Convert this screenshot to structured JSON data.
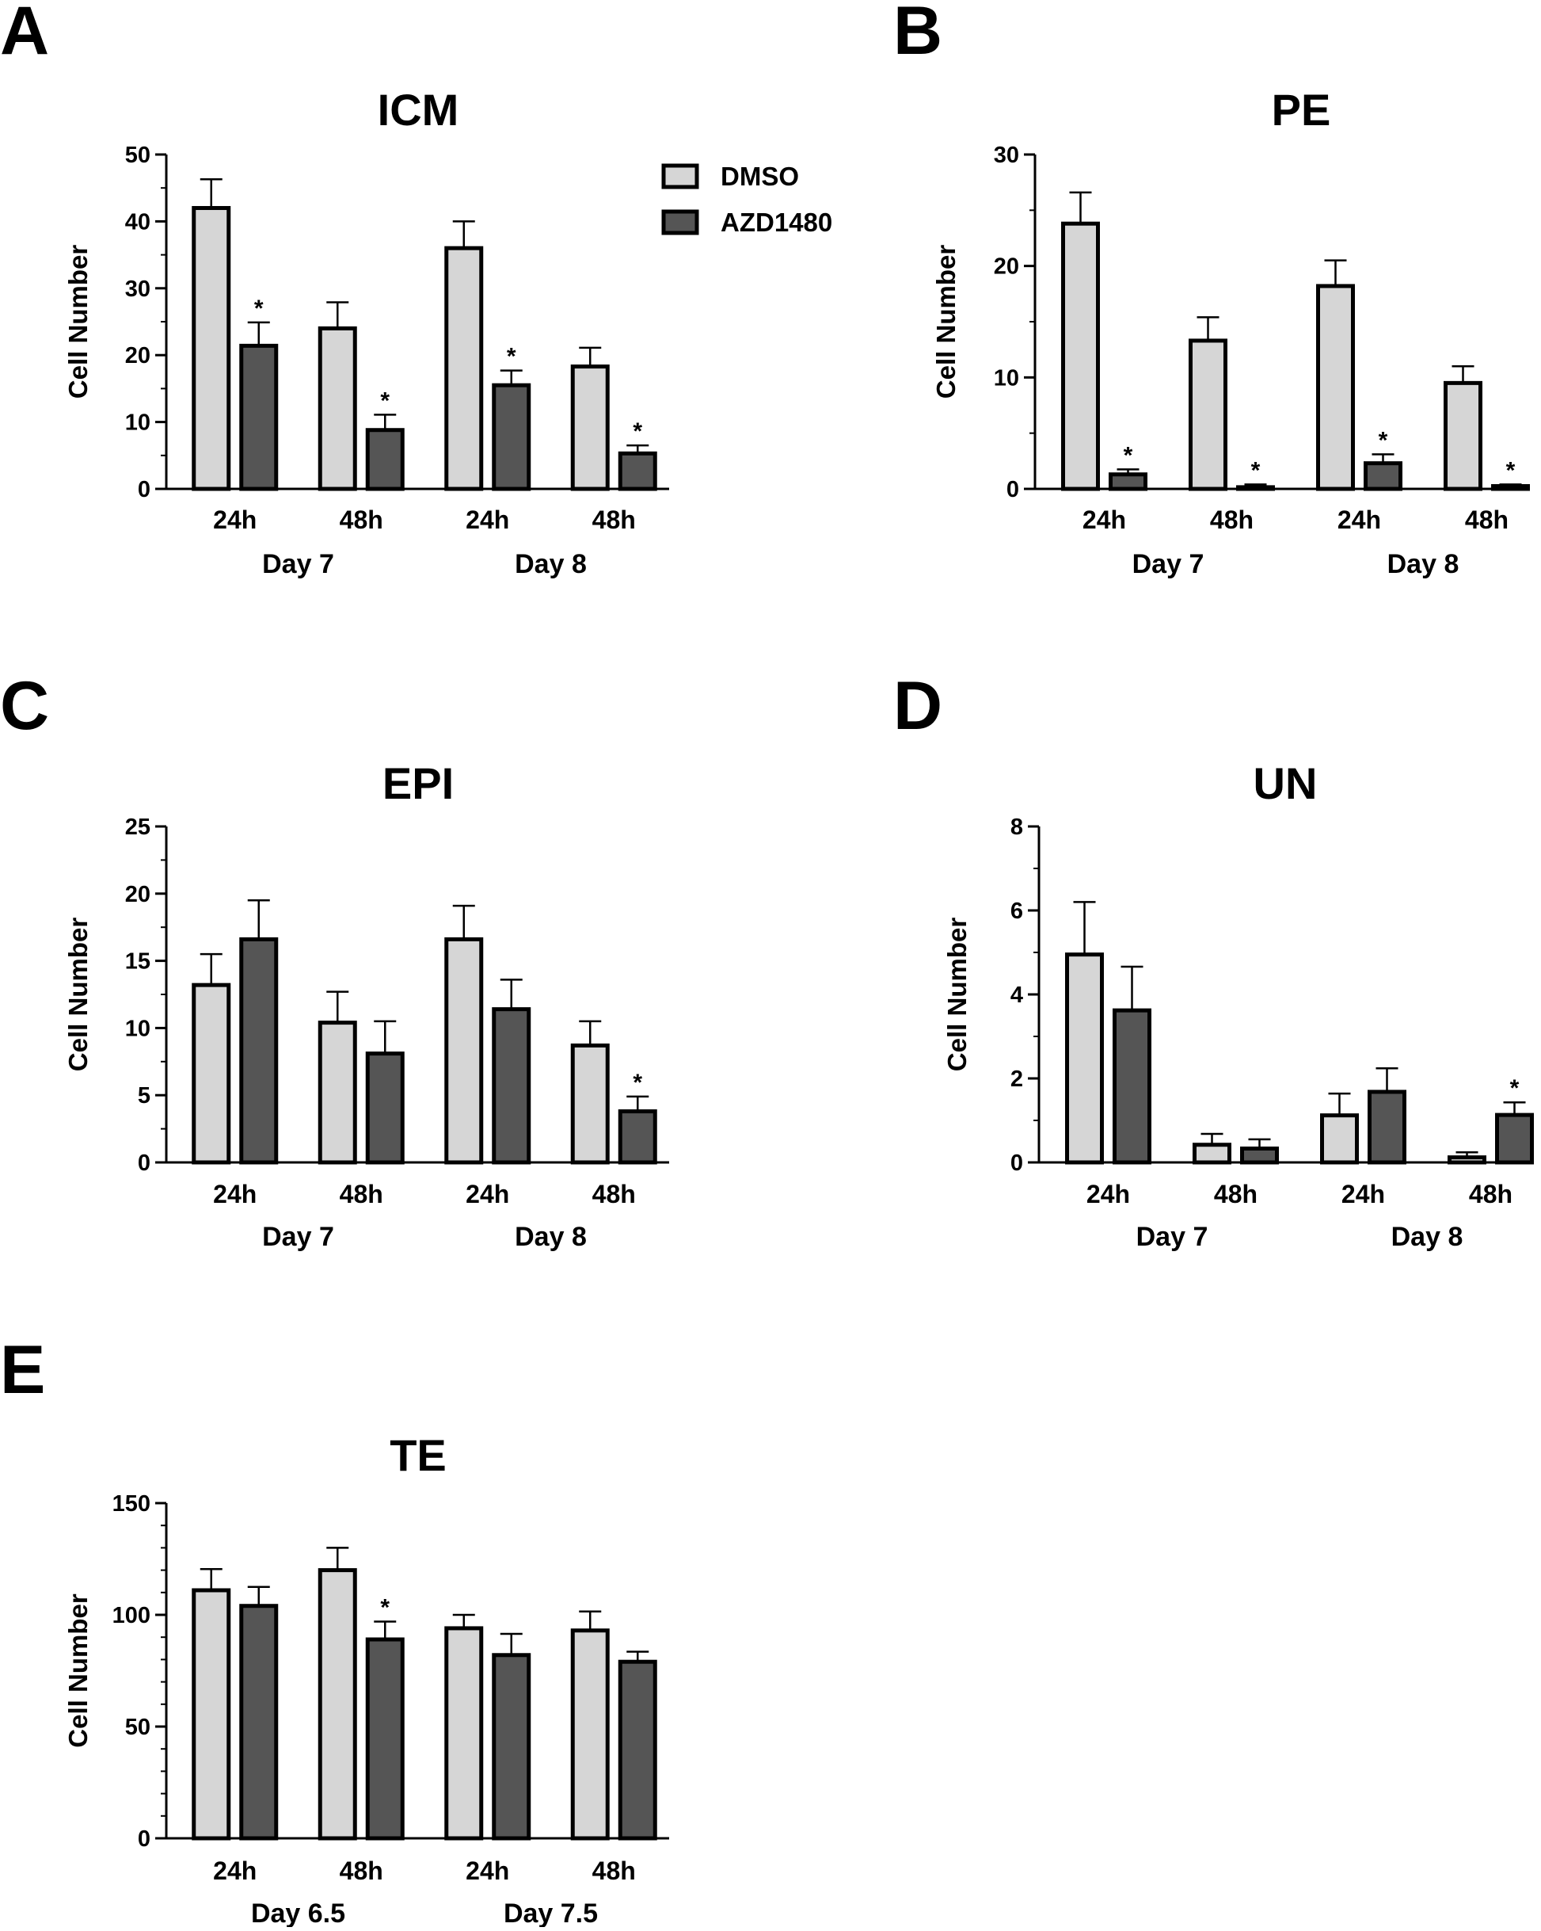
{
  "colors": {
    "dmso": "#d6d6d6",
    "azd": "#555555",
    "stroke": "#000000"
  },
  "legend": {
    "items": [
      {
        "label": "DMSO",
        "color": "#d6d6d6"
      },
      {
        "label": "AZD1480",
        "color": "#555555"
      }
    ]
  },
  "chart_data": [
    {
      "panel": "A",
      "type": "bar",
      "title": "ICM",
      "ylabel": "Cell Number",
      "xlabel": "",
      "ylim": [
        0,
        50
      ],
      "yticks": [
        0,
        10,
        20,
        30,
        40,
        50
      ],
      "categories": [
        "24h",
        "48h",
        "24h",
        "48h"
      ],
      "groups": [
        {
          "label": "Day 7",
          "categories": [
            0,
            1
          ]
        },
        {
          "label": "Day 8",
          "categories": [
            2,
            3
          ]
        }
      ],
      "series": [
        {
          "name": "DMSO",
          "values": [
            42,
            24,
            36,
            18.3
          ],
          "errors": [
            4.3,
            3.9,
            4.0,
            2.8
          ],
          "significant": [
            false,
            false,
            false,
            false
          ]
        },
        {
          "name": "AZD1480",
          "values": [
            21.4,
            8.8,
            15.5,
            5.3
          ],
          "errors": [
            3.5,
            2.3,
            2.2,
            1.2
          ],
          "significant": [
            true,
            true,
            true,
            true
          ]
        }
      ]
    },
    {
      "panel": "B",
      "type": "bar",
      "title": "PE",
      "ylabel": "Cell Number",
      "xlabel": "",
      "ylim": [
        0,
        30
      ],
      "yticks": [
        0,
        10,
        20,
        30
      ],
      "categories": [
        "24h",
        "48h",
        "24h",
        "48h"
      ],
      "groups": [
        {
          "label": "Day 7",
          "categories": [
            0,
            1
          ]
        },
        {
          "label": "Day 8",
          "categories": [
            2,
            3
          ]
        }
      ],
      "series": [
        {
          "name": "DMSO",
          "values": [
            23.8,
            13.3,
            18.2,
            9.5
          ],
          "errors": [
            2.8,
            2.1,
            2.3,
            1.5
          ],
          "significant": [
            false,
            false,
            false,
            false
          ]
        },
        {
          "name": "AZD1480",
          "values": [
            1.3,
            0.15,
            2.3,
            0.25
          ],
          "errors": [
            0.45,
            0.25,
            0.8,
            0.15
          ],
          "significant": [
            true,
            true,
            true,
            true
          ]
        }
      ]
    },
    {
      "panel": "C",
      "type": "bar",
      "title": "EPI",
      "ylabel": "Cell Number",
      "xlabel": "",
      "ylim": [
        0,
        25
      ],
      "yticks": [
        0,
        5,
        10,
        15,
        20,
        25
      ],
      "categories": [
        "24h",
        "48h",
        "24h",
        "48h"
      ],
      "groups": [
        {
          "label": "Day 7",
          "categories": [
            0,
            1
          ]
        },
        {
          "label": "Day 8",
          "categories": [
            2,
            3
          ]
        }
      ],
      "series": [
        {
          "name": "DMSO",
          "values": [
            13.2,
            10.4,
            16.6,
            8.7
          ],
          "errors": [
            2.3,
            2.3,
            2.5,
            1.8
          ],
          "significant": [
            false,
            false,
            false,
            false
          ]
        },
        {
          "name": "AZD1480",
          "values": [
            16.6,
            8.1,
            11.4,
            3.8
          ],
          "errors": [
            2.9,
            2.4,
            2.2,
            1.1
          ],
          "significant": [
            false,
            false,
            false,
            true
          ]
        }
      ]
    },
    {
      "panel": "D",
      "type": "bar",
      "title": "UN",
      "ylabel": "Cell Number",
      "xlabel": "",
      "ylim": [
        0,
        8
      ],
      "yticks": [
        0,
        2,
        4,
        6,
        8
      ],
      "categories": [
        "24h",
        "48h",
        "24h",
        "48h"
      ],
      "groups": [
        {
          "label": "Day 7",
          "categories": [
            0,
            1
          ]
        },
        {
          "label": "Day 8",
          "categories": [
            2,
            3
          ]
        }
      ],
      "series": [
        {
          "name": "DMSO",
          "values": [
            4.95,
            0.42,
            1.12,
            0.12
          ],
          "errors": [
            1.25,
            0.26,
            0.52,
            0.12
          ],
          "significant": [
            false,
            false,
            false,
            false
          ]
        },
        {
          "name": "AZD1480",
          "values": [
            3.62,
            0.33,
            1.68,
            1.13
          ],
          "errors": [
            1.04,
            0.22,
            0.56,
            0.3
          ],
          "significant": [
            false,
            false,
            false,
            true
          ]
        }
      ]
    },
    {
      "panel": "E",
      "type": "bar",
      "title": "TE",
      "ylabel": "Cell Number",
      "xlabel": "",
      "ylim": [
        0,
        150
      ],
      "yticks": [
        0,
        50,
        100,
        150
      ],
      "categories": [
        "24h",
        "48h",
        "24h",
        "48h"
      ],
      "groups": [
        {
          "label": "Day 6.5",
          "categories": [
            0,
            1
          ]
        },
        {
          "label": "Day 7.5",
          "categories": [
            2,
            3
          ]
        }
      ],
      "series": [
        {
          "name": "DMSO",
          "values": [
            111,
            120,
            94,
            93
          ],
          "errors": [
            9.5,
            10,
            6,
            8.5
          ],
          "significant": [
            false,
            false,
            false,
            false
          ]
        },
        {
          "name": "AZD1480",
          "values": [
            104,
            89,
            82,
            79
          ],
          "errors": [
            8.5,
            8,
            9.5,
            4.5
          ],
          "significant": [
            false,
            true,
            false,
            false
          ]
        }
      ]
    }
  ]
}
